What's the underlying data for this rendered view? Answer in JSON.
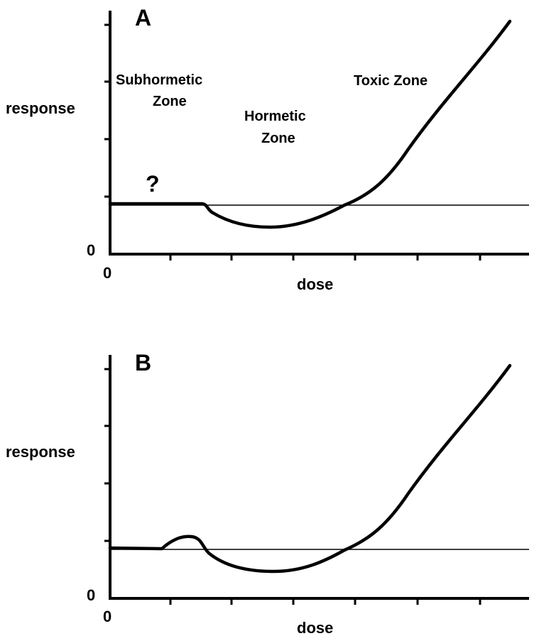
{
  "panels": [
    {
      "label": "A",
      "y_axis_label": "response",
      "x_axis_label": "dose",
      "y_origin_label": "0",
      "x_origin_label": "0",
      "zones": [
        {
          "lines": [
            "Subhormetic",
            "Zone"
          ]
        },
        {
          "lines": [
            "Hormetic",
            "Zone"
          ]
        },
        {
          "lines": [
            "Toxic Zone"
          ]
        }
      ],
      "question": "?"
    },
    {
      "label": "B",
      "y_axis_label": "response",
      "x_axis_label": "dose",
      "y_origin_label": "0",
      "x_origin_label": "0"
    }
  ]
}
